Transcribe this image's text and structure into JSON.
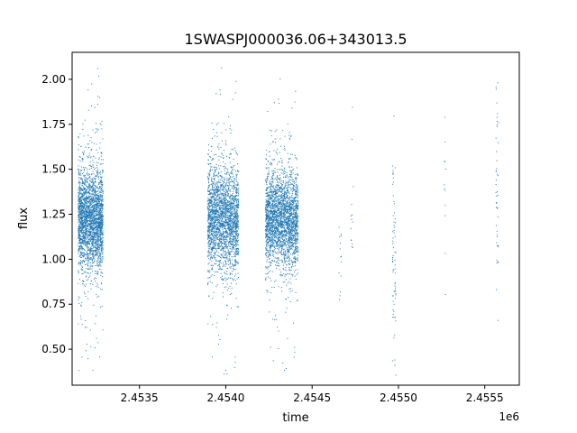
{
  "chart_data": {
    "type": "scatter",
    "title": "1SWASPJ000036.06+343013.5",
    "xlabel": "time",
    "ylabel": "flux",
    "x_offset_label": "1e6",
    "xlim": [
      2453110,
      2455700
    ],
    "ylim": [
      0.3,
      2.15
    ],
    "x_ticks": [
      2453500,
      2454000,
      2454500,
      2455000,
      2455500
    ],
    "x_tick_labels": [
      "2.4535",
      "2.4540",
      "2.4545",
      "2.4550",
      "2.4555"
    ],
    "y_ticks": [
      0.5,
      0.75,
      1.0,
      1.25,
      1.5,
      1.75,
      2.0
    ],
    "y_tick_labels": [
      "0.50",
      "0.75",
      "1.00",
      "1.25",
      "1.50",
      "1.75",
      "2.00"
    ],
    "grid": false,
    "marker_color": "#1f77b4",
    "clusters": [
      {
        "x_range": [
          2453145,
          2453290
        ],
        "center": 1.22,
        "spread": 0.14,
        "count": 2600
      },
      {
        "x_range": [
          2453895,
          2454075
        ],
        "center": 1.22,
        "spread": 0.14,
        "count": 2400
      },
      {
        "x_range": [
          2454230,
          2454420
        ],
        "center": 1.22,
        "spread": 0.13,
        "count": 2600
      },
      {
        "x_range": [
          2454655,
          2454670
        ],
        "center": 1.1,
        "spread": 0.25,
        "count": 14
      },
      {
        "x_range": [
          2454725,
          2454740
        ],
        "center": 1.3,
        "spread": 0.25,
        "count": 14
      },
      {
        "x_range": [
          2454965,
          2454985
        ],
        "center": 1.0,
        "spread": 0.28,
        "count": 70
      },
      {
        "x_range": [
          2455265,
          2455275
        ],
        "center": 1.4,
        "spread": 0.22,
        "count": 12
      },
      {
        "x_range": [
          2455565,
          2455580
        ],
        "center": 1.3,
        "spread": 0.35,
        "count": 45
      }
    ]
  }
}
